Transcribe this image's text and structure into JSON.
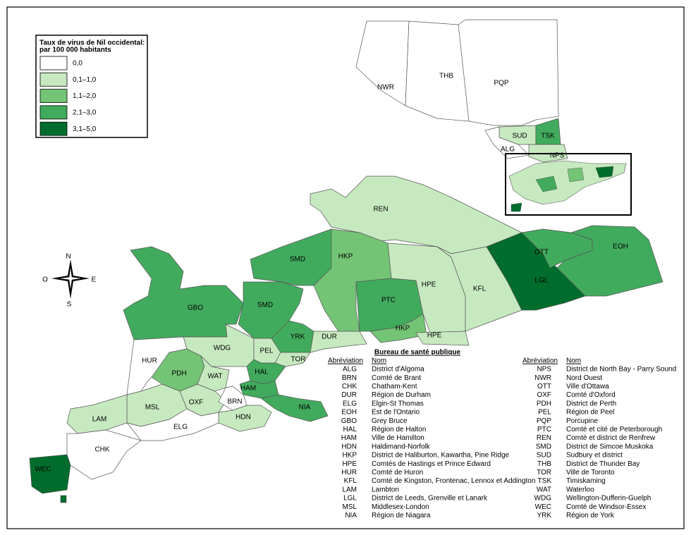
{
  "legend": {
    "title": [
      "Taux de virus de Nil occidental:",
      "par 100 000 habitants"
    ],
    "items": [
      {
        "label": "0,0",
        "color": "#ffffff"
      },
      {
        "label": "0,1–1,0",
        "color": "#c7e9c0"
      },
      {
        "label": "1,1–2,0",
        "color": "#74c476"
      },
      {
        "label": "2,1–3,0",
        "color": "#41ab5d"
      },
      {
        "label": "3,1–5,0",
        "color": "#006d2c"
      }
    ]
  },
  "compass": [
    "N",
    "O",
    "E",
    "S"
  ],
  "regions": [
    {
      "code": "NWR",
      "fill": "#ffffff"
    },
    {
      "code": "THB",
      "fill": "#ffffff"
    },
    {
      "code": "PQP",
      "fill": "#ffffff"
    },
    {
      "code": "SUD",
      "fill": "#c7e9c0"
    },
    {
      "code": "TSK",
      "fill": "#41ab5d"
    },
    {
      "code": "ALG",
      "fill": "#ffffff"
    },
    {
      "code": "NPS",
      "fill": "#c7e9c0"
    },
    {
      "code": "REN",
      "fill": "#c7e9c0"
    },
    {
      "code": "SMD",
      "fill": "#41ab5d"
    },
    {
      "code": "HKP",
      "fill": "#74c476"
    },
    {
      "code": "PTC",
      "fill": "#41ab5d"
    },
    {
      "code": "HPE",
      "fill": "#c7e9c0"
    },
    {
      "code": "KFL",
      "fill": "#c7e9c0"
    },
    {
      "code": "LGL",
      "fill": "#006d2c"
    },
    {
      "code": "OTT",
      "fill": "#41ab5d"
    },
    {
      "code": "EOH",
      "fill": "#41ab5d"
    },
    {
      "code": "GBO",
      "fill": "#41ab5d"
    },
    {
      "code": "WDG",
      "fill": "#c7e9c0"
    },
    {
      "code": "YRK",
      "fill": "#41ab5d"
    },
    {
      "code": "DUR",
      "fill": "#c7e9c0"
    },
    {
      "code": "PEL",
      "fill": "#c7e9c0"
    },
    {
      "code": "TOR",
      "fill": "#c7e9c0"
    },
    {
      "code": "HAL",
      "fill": "#41ab5d"
    },
    {
      "code": "HAM",
      "fill": "#41ab5d"
    },
    {
      "code": "NIA",
      "fill": "#41ab5d"
    },
    {
      "code": "HUR",
      "fill": "#ffffff"
    },
    {
      "code": "PDH",
      "fill": "#74c476"
    },
    {
      "code": "WAT",
      "fill": "#c7e9c0"
    },
    {
      "code": "OXF",
      "fill": "#c7e9c0"
    },
    {
      "code": "BRN",
      "fill": "#ffffff"
    },
    {
      "code": "HDN",
      "fill": "#c7e9c0"
    },
    {
      "code": "MSL",
      "fill": "#c7e9c0"
    },
    {
      "code": "LAM",
      "fill": "#c7e9c0"
    },
    {
      "code": "ELG",
      "fill": "#ffffff"
    },
    {
      "code": "CHK",
      "fill": "#ffffff"
    },
    {
      "code": "WEC",
      "fill": "#006d2c"
    }
  ],
  "table": {
    "title": "Bureau de santé publique",
    "headers": [
      "Abréviation",
      "Nom"
    ],
    "left": [
      [
        "ALG",
        "District d'Algoma"
      ],
      [
        "BRN",
        "Comté de Brant"
      ],
      [
        "CHK",
        "Chatham-Kent"
      ],
      [
        "DUR",
        "Région de Durham"
      ],
      [
        "ELG",
        "Elgin-St Thomas"
      ],
      [
        "EOH",
        "Est de l'Ontario"
      ],
      [
        "GBO",
        "Grey Bruce"
      ],
      [
        "HAL",
        "Région de Halton"
      ],
      [
        "HAM",
        "Ville de Hamilton"
      ],
      [
        "HDN",
        "Haldimand-Norfolk"
      ],
      [
        "HKP",
        "District de Haliburton, Kawartha, Pine Ridge"
      ],
      [
        "HPE",
        "Comtés de Hastings et Prince Edward"
      ],
      [
        "HUR",
        "Comté de Huron"
      ],
      [
        "KFL",
        "Comté de Kingston, Frontenac, Lennox et Addington"
      ],
      [
        "LAM",
        "Lambton"
      ],
      [
        "LGL",
        "District de Leeds, Grenville et Lanark"
      ],
      [
        "MSL",
        "Middlesex-London"
      ],
      [
        "NIA",
        "Région de Niagara"
      ]
    ],
    "right": [
      [
        "NPS",
        "District de North Bay - Parry Sound"
      ],
      [
        "NWR",
        "Nord Ouest"
      ],
      [
        "OTT",
        "Ville d'Ottawa"
      ],
      [
        "OXF",
        "Comté d'Oxford"
      ],
      [
        "PDH",
        "District de Perth"
      ],
      [
        "PEL",
        "Région de Peel"
      ],
      [
        "PQP",
        "Porcupine"
      ],
      [
        "PTC",
        "Comté et cité de Peterborough"
      ],
      [
        "REN",
        "Comté et district de Renfrew"
      ],
      [
        "SMD",
        "District de Simcoe Muskoka"
      ],
      [
        "SUD",
        "Sudbury et district"
      ],
      [
        "THB",
        "District de Thunder Bay"
      ],
      [
        "TOR",
        "Ville de Toronto"
      ],
      [
        "TSK",
        "Timiskaming"
      ],
      [
        "WAT",
        "Waterloo"
      ],
      [
        "WDG",
        "Wellington-Dufferin-Guelph"
      ],
      [
        "WEC",
        "Comté de Windsor-Essex"
      ],
      [
        "YRK",
        "Région de York"
      ]
    ]
  }
}
